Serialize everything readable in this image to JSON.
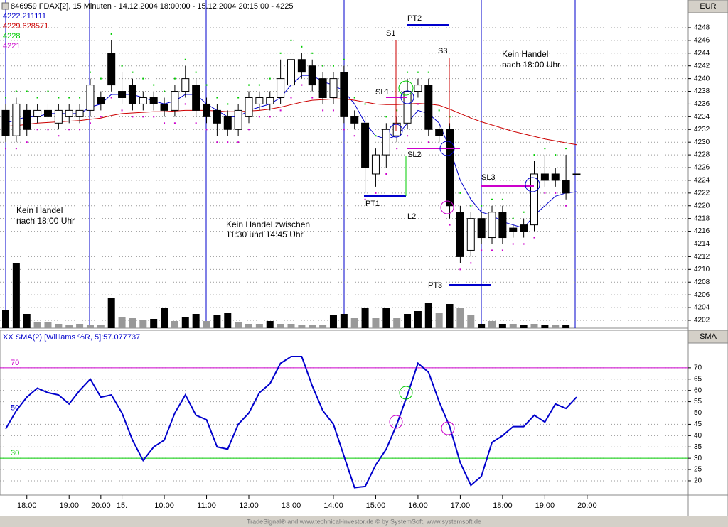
{
  "chart_data": [
    {
      "type": "candlestick",
      "title": "846959  FDAX[2], 15 Minuten - 14.12.2004 18:00:00 - 15.12.2004 20:15:00 - 4225",
      "header_values": [
        4222.211111,
        4229.628571,
        4228,
        4221
      ],
      "header_colors": [
        "#0000cc",
        "#cc0000",
        "#00cc00",
        "#cc00cc"
      ],
      "axis_label": "EUR",
      "categories": [
        null,
        null,
        "18:00",
        null,
        null,
        null,
        "19:00",
        null,
        null,
        "20:00",
        null,
        "15.",
        null,
        null,
        null,
        "10:00",
        null,
        null,
        null,
        "11:00",
        null,
        null,
        null,
        "12:00",
        null,
        null,
        null,
        "13:00",
        null,
        null,
        null,
        "14:00",
        null,
        null,
        null,
        "15:00",
        null,
        null,
        null,
        "16:00",
        null,
        null,
        null,
        "17:00",
        null,
        null,
        null,
        "18:00",
        null,
        null,
        null,
        "19:00",
        null,
        null,
        null,
        "20:00"
      ],
      "open": [
        4235,
        4231,
        4235,
        4234,
        4235,
        4233,
        4234,
        4234,
        4235,
        4237,
        4244,
        4238,
        4239,
        4236,
        4237,
        4236,
        4235,
        4238,
        4239,
        4236,
        4235,
        4234,
        4232,
        4234,
        4236,
        4236,
        4237,
        4239,
        4243,
        4242,
        4240,
        4237,
        4241,
        4234,
        4233,
        4225,
        4228,
        4231,
        4233,
        4238,
        4239,
        4232,
        4232,
        4219,
        4213,
        4218,
        4215,
        4219,
        4216.5,
        4217,
        4217,
        4225,
        4225,
        4224,
        4225,
        null
      ],
      "close": [
        4231,
        4236,
        4232,
        4235,
        4234,
        4235,
        4235,
        4235,
        4239,
        4236,
        4239,
        4237,
        4236,
        4237,
        4236,
        4235,
        4238,
        4240,
        4235,
        4234,
        4233,
        4232,
        4235,
        4237,
        4237,
        4237,
        4240,
        4243,
        4241,
        4239,
        4237,
        4240,
        4234,
        4233,
        4226,
        4228,
        4232,
        4233,
        4238,
        4239,
        4232,
        4231,
        4220,
        4212,
        4218,
        4215,
        4219,
        4215,
        4216,
        4216,
        4225,
        4224,
        4224,
        4222,
        4225,
        null
      ],
      "high": [
        4236,
        4237,
        4236,
        4236,
        4236,
        4236,
        4236,
        4236,
        4240,
        4238,
        4246,
        4241,
        4240,
        4238,
        4238,
        4237,
        4239,
        4242,
        4240,
        4237,
        4236,
        4235,
        4236,
        4238,
        4238,
        4238,
        4243,
        4245,
        4244,
        4243,
        4241,
        4241,
        4242,
        4235,
        4234,
        4229,
        4233,
        4234,
        4240,
        4240,
        4240,
        4233,
        4233,
        4220,
        4219,
        4219,
        4220,
        4220,
        4217,
        4218,
        4227,
        4228,
        4226,
        4228,
        4225,
        null
      ],
      "low": [
        4230,
        4230,
        4231,
        4233,
        4233,
        4232,
        4233,
        4233,
        4234,
        4235,
        4238,
        4236,
        4235,
        4235,
        4235,
        4234,
        4234,
        4237,
        4234,
        4233,
        4231,
        4231,
        4231,
        4233,
        4235,
        4235,
        4236,
        4238,
        4240,
        4238,
        4236,
        4236,
        4233,
        4232,
        4222,
        4223,
        4226,
        4230,
        4232,
        4237,
        4231,
        4230,
        4218,
        4211,
        4212,
        4214,
        4214,
        4214,
        4215,
        4215,
        4216,
        4223,
        4223,
        4221,
        4225,
        null
      ],
      "series": [
        {
          "color": "#0000cc",
          "values": [
            4233,
            4233.5,
            4234,
            4234,
            4234.5,
            4234.5,
            4234.5,
            4234.5,
            4235.5,
            4236,
            4237.5,
            4237.5,
            4237.5,
            4237,
            4236.5,
            4236,
            4236.5,
            4237.5,
            4237.5,
            4236,
            4235,
            4234,
            4234,
            4235,
            4235.5,
            4236,
            4237,
            4239,
            4240.5,
            4240.5,
            4239.5,
            4239,
            4238,
            4236,
            4233,
            4231,
            4230.5,
            4231,
            4233,
            4235,
            4234.5,
            4233,
            4229,
            4224,
            4221,
            4219,
            4218.5,
            4217.5,
            4217,
            4216.5,
            4218.5,
            4220,
            4221.5,
            4222,
            4222.2,
            null
          ]
        },
        {
          "color": "#cc0000",
          "values": [
            4232.5,
            4232.6,
            4232.8,
            4233,
            4233.1,
            4233.2,
            4233.3,
            4233.4,
            4233.6,
            4233.8,
            4234.2,
            4234.5,
            4234.6,
            4234.7,
            4234.8,
            4234.8,
            4234.9,
            4235,
            4235,
            4235,
            4234.9,
            4234.8,
            4234.8,
            4234.9,
            4235,
            4235.2,
            4235.5,
            4235.9,
            4236.3,
            4236.6,
            4236.7,
            4236.8,
            4236.8,
            4236.6,
            4236.3,
            4236,
            4235.9,
            4235.9,
            4236,
            4236.1,
            4236,
            4235.8,
            4235.2,
            4234.5,
            4233.8,
            4233.2,
            4232.7,
            4232.2,
            4231.7,
            4231.3,
            4230.9,
            4230.5,
            4230.2,
            4229.9,
            4229.6,
            null
          ]
        }
      ],
      "dots": [
        {
          "color": "#00cc00",
          "values": [
            4237,
            4238,
            4238,
            4237,
            4238,
            4237,
            4237,
            4237,
            4241,
            4240,
            4247,
            4242,
            4241,
            4240,
            4239,
            4238,
            4240,
            4243,
            4241,
            4239,
            4237,
            4236,
            4237,
            4239,
            4239,
            4240,
            4244,
            4246,
            4245,
            4244,
            4242,
            4242,
            4243,
            4237,
            4236,
            4231,
            4234,
            4235,
            4241,
            4241,
            4241,
            4235,
            4234,
            4222,
            4220,
            4220,
            4221,
            4221,
            4218,
            4219,
            4228,
            4229,
            4228,
            4229,
            null,
            null
          ]
        },
        {
          "color": "#cc00cc",
          "values": [
            4229,
            4229,
            4230,
            4232,
            4232,
            4231,
            4232,
            4232,
            4233,
            4234,
            4237,
            4235,
            4234,
            4234,
            4234,
            4233,
            4233,
            4236,
            4233,
            4232,
            4230,
            4230,
            4230,
            4232,
            4234,
            4234,
            4235,
            4237,
            4239,
            4237,
            4235,
            4235,
            4232,
            4231,
            4221,
            4222,
            4225,
            4229,
            4231,
            4236,
            4230,
            4229,
            4217,
            4210,
            4211,
            4213,
            4213,
            4213,
            4214,
            4214,
            4215,
            4222,
            4222,
            4220,
            null,
            null
          ]
        }
      ],
      "volume": [
        25,
        92,
        20,
        8,
        8,
        6,
        5,
        6,
        4,
        5,
        42,
        16,
        14,
        12,
        13,
        28,
        10,
        16,
        20,
        10,
        18,
        22,
        8,
        6,
        6,
        10,
        6,
        6,
        5,
        5,
        4,
        18,
        20,
        14,
        28,
        14,
        28,
        14,
        20,
        24,
        36,
        22,
        34,
        28,
        18,
        6,
        10,
        6,
        6,
        4,
        6,
        5,
        4,
        5,
        null,
        null
      ],
      "volume_colors": [
        "#000000",
        "#000000",
        "#000000",
        "#999999",
        "#999999",
        "#999999",
        "#999999",
        "#999999",
        "#999999",
        "#999999",
        "#000000",
        "#999999",
        "#999999",
        "#999999",
        "#000000",
        "#000000",
        "#999999",
        "#000000",
        "#000000",
        "#999999",
        "#000000",
        "#000000",
        "#999999",
        "#999999",
        "#999999",
        "#000000",
        "#999999",
        "#999999",
        "#999999",
        "#999999",
        "#999999",
        "#000000",
        "#000000",
        "#999999",
        "#000000",
        "#999999",
        "#000000",
        "#999999",
        "#000000",
        "#000000",
        "#000000",
        "#999999",
        "#000000",
        "#999999",
        "#999999",
        "#000000",
        "#999999",
        "#000000",
        "#999999",
        "#000000",
        "#999999",
        "#000000",
        "#999999",
        "#000000",
        null,
        null
      ],
      "ylim": [
        4200.77,
        4252.35
      ],
      "yticks": [
        4202,
        4204,
        4206,
        4208,
        4210,
        4212,
        4214,
        4216,
        4218,
        4220,
        4222,
        4224,
        4226,
        4228,
        4230,
        4232,
        4234,
        4236,
        4238,
        4240,
        4242,
        4244,
        4246,
        4248
      ],
      "grid": true,
      "annotations": [
        "Kein Handel",
        "nach 18:00 Uhr",
        "Kein Handel zwischen",
        "11:30 und 14:45 Uhr",
        "Kein Handel",
        "nach 18:00 Uhr",
        "S1",
        "PT2",
        "S3",
        "SL1",
        "SL2",
        "SL3",
        "PT1",
        "L2",
        "PT3"
      ],
      "footer": "TradeSignal® and www.technical-investor.de © by SystemSoft, www.systemsoft.de"
    },
    {
      "type": "line",
      "title": "XX SMA(2) [Williams %R, 5]:57.077737",
      "axis_label": "SMA",
      "color": "#0000cc",
      "values": [
        43,
        51,
        57,
        61,
        59,
        58,
        54,
        60,
        65,
        57,
        58,
        50,
        38,
        29,
        35,
        38,
        50,
        58,
        49,
        47,
        35,
        34,
        45,
        50,
        59,
        63,
        72,
        75,
        75,
        62,
        51,
        45,
        31,
        17,
        17.5,
        27,
        34,
        45,
        58,
        72,
        68,
        55,
        44,
        28,
        18,
        22,
        37,
        40,
        44,
        44,
        49,
        46,
        54,
        52,
        57,
        null
      ],
      "ylim": [
        13.7,
        81.9
      ],
      "yticks": [
        20,
        25,
        30,
        35,
        40,
        45,
        50,
        55,
        60,
        65,
        70
      ],
      "levels": [
        70,
        50,
        30
      ],
      "level_colors": [
        "#cc00cc",
        "#0000cc",
        "#00cc00"
      ]
    }
  ]
}
